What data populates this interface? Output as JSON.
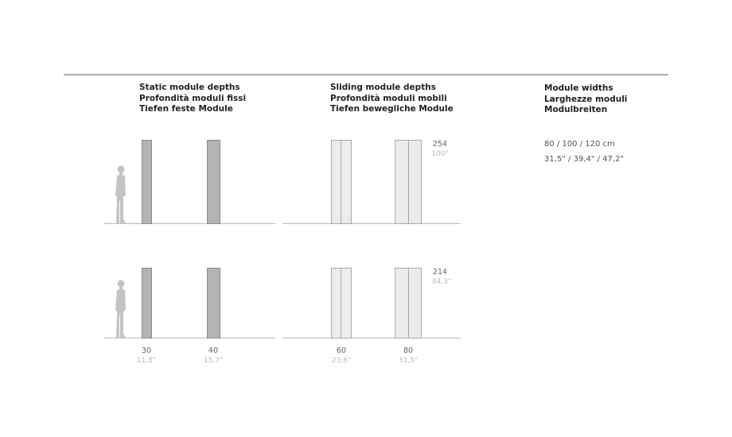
{
  "static": {
    "title_lines": [
      "Static module depths",
      "Profondità moduli fissi",
      "Tiefen feste Module"
    ],
    "depths": [
      {
        "cm": "30",
        "inch": "11,8\""
      },
      {
        "cm": "40",
        "inch": "15,7\""
      }
    ]
  },
  "sliding": {
    "title_lines": [
      "Sliding module depths",
      "Profondità moduli mobili",
      "Tiefen bewegliche Module"
    ],
    "depths": [
      {
        "cm": "60",
        "inch": "23,6\""
      },
      {
        "cm": "80",
        "inch": "31,5\""
      }
    ],
    "heights": [
      {
        "cm": "254",
        "inch": "100\""
      },
      {
        "cm": "214",
        "inch": "84,3\""
      }
    ]
  },
  "widths": {
    "title_lines": [
      "Module widths",
      "Larghezze moduli",
      "Modulbreiten"
    ],
    "cm": "80 / 100 / 120 cm",
    "inch": "31,5\" / 39,4\" / 47,2\""
  }
}
